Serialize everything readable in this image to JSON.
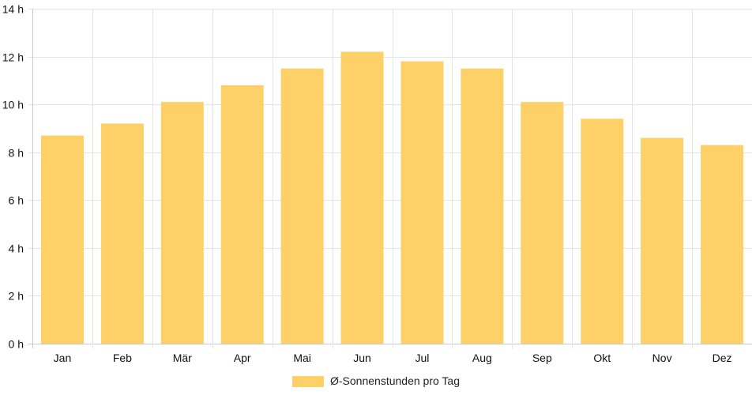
{
  "chart_data": {
    "type": "bar",
    "categories": [
      "Jan",
      "Feb",
      "Mär",
      "Apr",
      "Mai",
      "Jun",
      "Jul",
      "Aug",
      "Sep",
      "Okt",
      "Nov",
      "Dez"
    ],
    "series": [
      {
        "name": "Ø-Sonnenstunden pro Tag",
        "values": [
          8.7,
          9.2,
          10.1,
          10.8,
          11.5,
          12.2,
          11.8,
          11.5,
          10.1,
          9.4,
          8.6,
          8.3
        ],
        "color": "#fdd167"
      }
    ],
    "y_ticks": [
      "0 h",
      "2 h",
      "4 h",
      "6 h",
      "8 h",
      "10 h",
      "12 h",
      "14 h"
    ],
    "ylim": [
      0,
      14
    ],
    "y_step": 2,
    "grid": true,
    "legend_position": "bottom"
  }
}
